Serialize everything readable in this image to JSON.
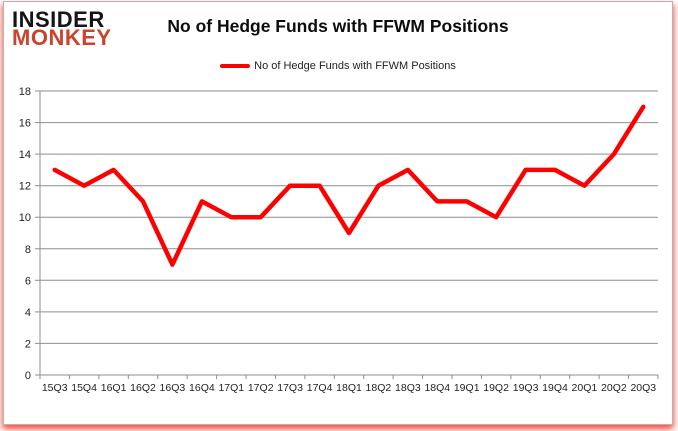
{
  "logo": {
    "line1": "INSIDER",
    "line2": "MONKEY"
  },
  "header": {
    "title": "No of Hedge Funds with FFWM Positions"
  },
  "legend": {
    "label": "No of Hedge Funds with FFWM Positions"
  },
  "colors": {
    "line": "#ff0000",
    "grid": "#8e8e8e",
    "axis": "#8e8e8e",
    "axis_text": "#1f1f1f",
    "logo_black": "#151515",
    "logo_red": "#c9442d",
    "card_border": "#b4b4b4",
    "shadow_glow": "#fc1e0a"
  },
  "chart_data": {
    "type": "line",
    "title": "No of Hedge Funds with FFWM Positions",
    "categories": [
      "15Q3",
      "15Q4",
      "16Q1",
      "16Q2",
      "16Q3",
      "16Q4",
      "17Q1",
      "17Q2",
      "17Q3",
      "17Q4",
      "18Q1",
      "18Q2",
      "18Q3",
      "18Q4",
      "19Q1",
      "19Q2",
      "19Q3",
      "19Q4",
      "20Q1",
      "20Q2",
      "20Q3"
    ],
    "series": [
      {
        "name": "No of Hedge Funds with FFWM Positions",
        "color": "#ff0000",
        "values": [
          13,
          12,
          13,
          11,
          7,
          11,
          10,
          10,
          12,
          12,
          9,
          12,
          13,
          11,
          11,
          10,
          13,
          13,
          12,
          14,
          17
        ]
      }
    ],
    "xlabel": "",
    "ylabel": "",
    "ylim": [
      0,
      18
    ],
    "ytick_step": 2,
    "grid": "horizontal",
    "legend_position": "top-center"
  }
}
